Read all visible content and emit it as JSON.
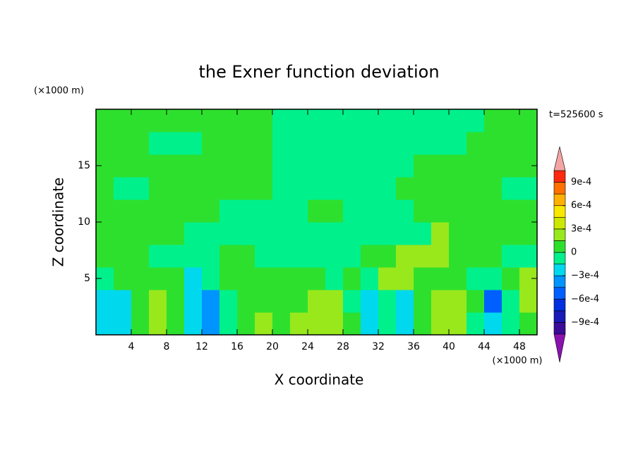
{
  "chart_data": {
    "type": "contour",
    "title": "the Exner function deviation",
    "x_label": "X coordinate",
    "y_label": "Z coordinate",
    "y_unit": "(×1000 m)",
    "x_unit": "(×1000 m)",
    "annotation": "t=525600 s",
    "xlim": [
      0,
      50
    ],
    "ylim": [
      0,
      20
    ],
    "xticks": [
      4,
      8,
      12,
      16,
      20,
      24,
      28,
      32,
      36,
      40,
      44,
      48
    ],
    "yticks": [
      5,
      10,
      15
    ],
    "x": [
      1,
      3,
      5,
      7,
      9,
      11,
      13,
      15,
      17,
      19,
      21,
      23,
      25,
      27,
      29,
      31,
      33,
      35,
      37,
      39,
      41,
      43,
      45,
      47,
      49
    ],
    "y": [
      1,
      3,
      5,
      7,
      9,
      11,
      13,
      15,
      17,
      19
    ],
    "z": [
      [
        -0.0002,
        -0.0002,
        5e-05,
        0.0002,
        5e-05,
        -0.0002,
        -0.0004,
        -5e-05,
        5e-05,
        0.0002,
        5e-05,
        0.0002,
        0.0002,
        0.0002,
        5e-05,
        -0.0002,
        -5e-05,
        -0.0002,
        5e-05,
        0.0002,
        0.0002,
        -5e-05,
        -0.0002,
        -5e-05,
        5e-05
      ],
      [
        -0.0002,
        -0.0002,
        5e-05,
        0.0002,
        5e-05,
        -0.00025,
        -0.0004,
        -5e-05,
        5e-05,
        5e-05,
        5e-05,
        5e-05,
        0.0002,
        0.0002,
        -5e-05,
        -0.0002,
        -5e-05,
        -0.0002,
        5e-05,
        0.0002,
        0.0002,
        5e-05,
        -0.0005,
        -5e-05,
        0.0002
      ],
      [
        -5e-05,
        5e-05,
        5e-05,
        5e-05,
        5e-05,
        -0.0002,
        -5e-05,
        5e-05,
        5e-05,
        5e-05,
        5e-05,
        5e-05,
        5e-05,
        -5e-05,
        5e-05,
        -5e-05,
        0.0002,
        0.0002,
        5e-05,
        5e-05,
        5e-05,
        -5e-05,
        -5e-05,
        5e-05,
        0.0002
      ],
      [
        5e-05,
        5e-05,
        5e-05,
        -5e-05,
        -5e-05,
        -5e-05,
        -5e-05,
        5e-05,
        5e-05,
        -5e-05,
        -5e-05,
        -5e-05,
        -5e-05,
        -5e-05,
        -5e-05,
        5e-05,
        5e-05,
        0.0002,
        0.0002,
        0.0002,
        5e-05,
        5e-05,
        5e-05,
        -5e-05,
        -5e-05
      ],
      [
        5e-05,
        5e-05,
        5e-05,
        5e-05,
        5e-05,
        -5e-05,
        -5e-05,
        -5e-05,
        -5e-05,
        -5e-05,
        -5e-05,
        -5e-05,
        -5e-05,
        -5e-05,
        -5e-05,
        -5e-05,
        -5e-05,
        -5e-05,
        -5e-05,
        0.0002,
        5e-05,
        5e-05,
        5e-05,
        5e-05,
        5e-05
      ],
      [
        5e-05,
        5e-05,
        5e-05,
        5e-05,
        5e-05,
        5e-05,
        5e-05,
        -5e-05,
        -5e-05,
        -5e-05,
        -5e-05,
        -5e-05,
        5e-05,
        5e-05,
        -5e-05,
        -5e-05,
        -5e-05,
        -5e-05,
        5e-05,
        5e-05,
        5e-05,
        5e-05,
        5e-05,
        5e-05,
        5e-05
      ],
      [
        5e-05,
        -5e-05,
        -5e-05,
        5e-05,
        5e-05,
        5e-05,
        5e-05,
        5e-05,
        5e-05,
        5e-05,
        -5e-05,
        -5e-05,
        -5e-05,
        -5e-05,
        -5e-05,
        -5e-05,
        -5e-05,
        5e-05,
        5e-05,
        5e-05,
        5e-05,
        5e-05,
        5e-05,
        -5e-05,
        -5e-05
      ],
      [
        5e-05,
        5e-05,
        5e-05,
        5e-05,
        5e-05,
        5e-05,
        5e-05,
        5e-05,
        5e-05,
        5e-05,
        -5e-05,
        -5e-05,
        -5e-05,
        -5e-05,
        -5e-05,
        -5e-05,
        -5e-05,
        -5e-05,
        5e-05,
        5e-05,
        5e-05,
        5e-05,
        5e-05,
        5e-05,
        5e-05
      ],
      [
        5e-05,
        5e-05,
        5e-05,
        -5e-05,
        -5e-05,
        -5e-05,
        5e-05,
        5e-05,
        5e-05,
        5e-05,
        -5e-05,
        -5e-05,
        -5e-05,
        -5e-05,
        -5e-05,
        -5e-05,
        -5e-05,
        -5e-05,
        -5e-05,
        -5e-05,
        -5e-05,
        5e-05,
        5e-05,
        5e-05,
        5e-05
      ],
      [
        5e-05,
        5e-05,
        5e-05,
        5e-05,
        5e-05,
        5e-05,
        5e-05,
        5e-05,
        5e-05,
        5e-05,
        -5e-05,
        -5e-05,
        -5e-05,
        -5e-05,
        -5e-05,
        -5e-05,
        -5e-05,
        -5e-05,
        -5e-05,
        -5e-05,
        -5e-05,
        -5e-05,
        5e-05,
        5e-05,
        5e-05
      ]
    ],
    "levels": [
      -0.00105,
      -0.0009,
      -0.00075,
      -0.0006,
      -0.00045,
      -0.0003,
      -0.00015,
      0,
      0.00015,
      0.0003,
      0.00045,
      0.0006,
      0.00075,
      0.0009,
      0.00105
    ],
    "colors": [
      "#3a0c98",
      "#1a1ab8",
      "#0030e0",
      "#0060ff",
      "#0094ff",
      "#00d8ee",
      "#00f08c",
      "#2ee02e",
      "#98e81c",
      "#cce800",
      "#f8e800",
      "#ffb000",
      "#ff7000",
      "#ff2a10"
    ],
    "extend_colors": [
      "#8a12b0",
      "#f4a4a4"
    ],
    "colorbar_ticks": [
      {
        "value": 0.0009,
        "label": "9e-4"
      },
      {
        "value": 0.0006,
        "label": "6e-4"
      },
      {
        "value": 0.0003,
        "label": "3e-4"
      },
      0,
      {
        "value": -0.0003,
        "label": "−3e-4"
      },
      {
        "value": -0.0006,
        "label": "−6e-4"
      },
      {
        "value": -0.0009,
        "label": "−9e-4"
      }
    ]
  }
}
